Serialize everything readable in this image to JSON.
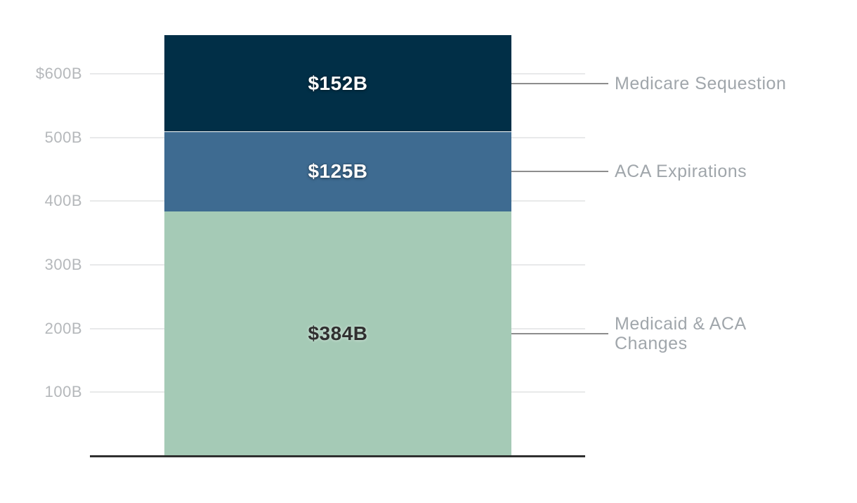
{
  "chart_data": {
    "type": "bar",
    "stacked": true,
    "orientation": "vertical",
    "unit": "billions of dollars",
    "title": "",
    "legend": "none",
    "grid": true,
    "background_color": "#ffffff",
    "grid_color": "#e8e9ea",
    "axis_line_color": "#2f2f2f",
    "callout_line_color": "#8d8d8d",
    "annotation_text_color": "#a0a6ab",
    "tick_label_color": "#b5b8bb",
    "total": 661,
    "ylim": [
      0,
      663
    ],
    "series": [
      {
        "name": "Medicaid & ACA Changes",
        "value": 384,
        "value_label": "$384B",
        "color": "#a5cab6",
        "value_label_theme": "dark",
        "annotation_lines": [
          "Medicaid & ACA",
          "Changes"
        ]
      },
      {
        "name": "ACA Expirations",
        "value": 125,
        "value_label": "$125B",
        "color": "#3e6b91",
        "value_label_theme": "light",
        "annotation_lines": [
          "ACA Expirations"
        ]
      },
      {
        "name": "Medicare Sequestion",
        "value": 152,
        "value_label": "$152B",
        "color": "#012f47",
        "value_label_theme": "light",
        "annotation_lines": [
          "Medicare Sequestion"
        ]
      }
    ],
    "y_axis": {
      "ticks": [
        {
          "value": 600,
          "label": "$600B"
        },
        {
          "value": 500,
          "label": "500B"
        },
        {
          "value": 400,
          "label": "400B"
        },
        {
          "value": 300,
          "label": "300B"
        },
        {
          "value": 200,
          "label": "200B"
        },
        {
          "value": 100,
          "label": "100B"
        }
      ]
    }
  }
}
